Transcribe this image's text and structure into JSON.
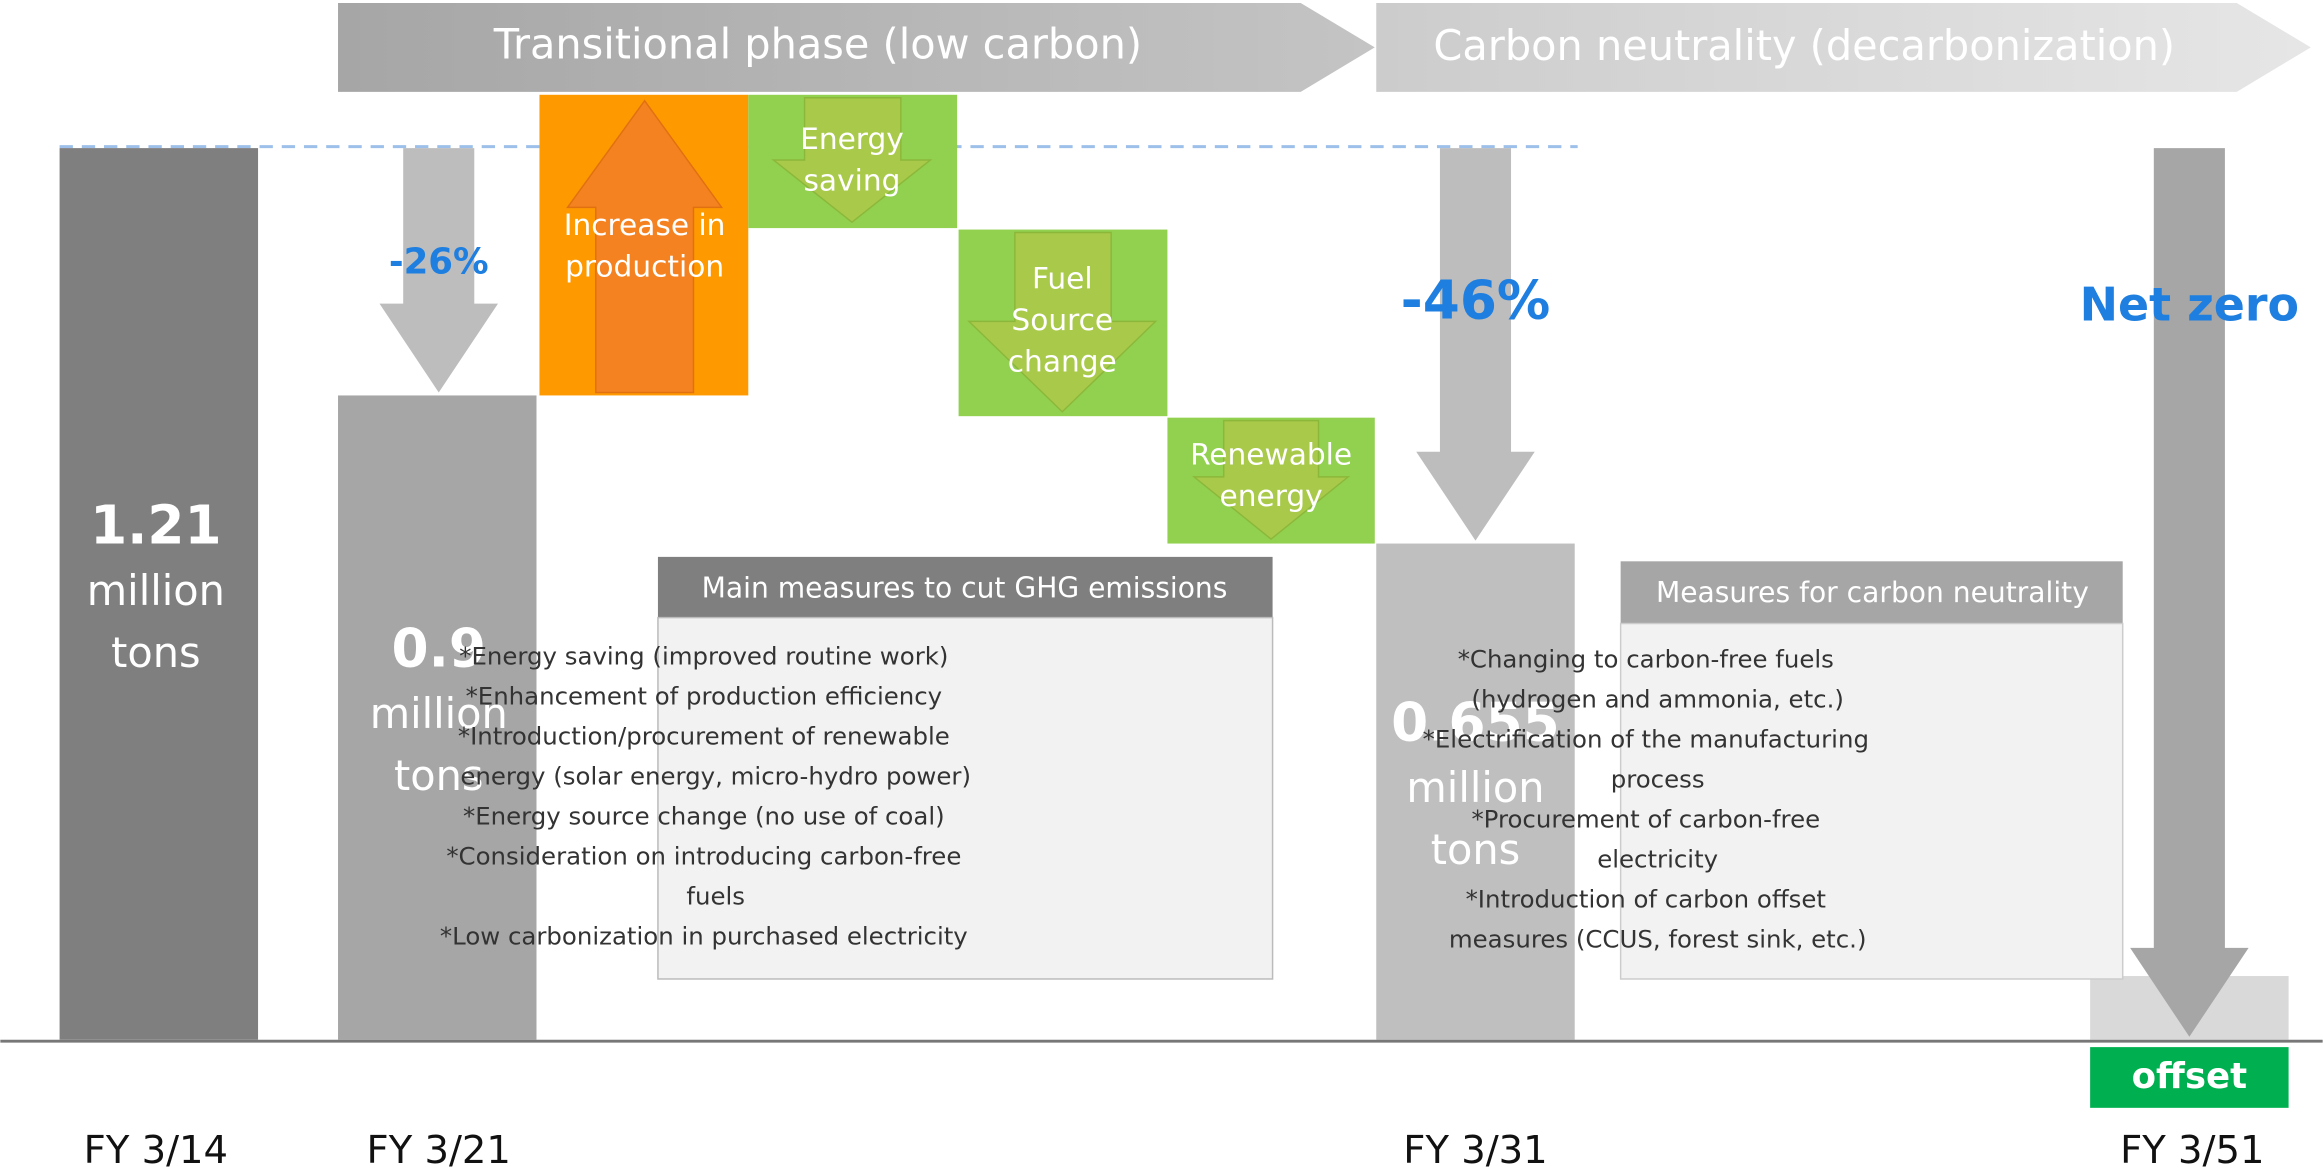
{
  "phases": [
    "Transitional phase (low carbon)",
    "Carbon neutrality (decarbonization)"
  ],
  "bars": [
    {
      "value": "1.21",
      "unit": [
        "million",
        "tons"
      ],
      "year": "FY 3/14"
    },
    {
      "value": "0.9",
      "unit": [
        "million",
        "tons"
      ],
      "year": "FY 3/21"
    },
    {
      "value": "0.655",
      "unit": [
        "million",
        "tons"
      ],
      "year": "FY 3/31"
    }
  ],
  "final_year": "FY 3/51",
  "changes": [
    "-26%",
    "-46%",
    "Net zero"
  ],
  "steps": [
    [
      "Increase in",
      "production"
    ],
    [
      "Energy",
      "saving"
    ],
    [
      "Fuel",
      "Source",
      "change"
    ],
    [
      "Renewable",
      "energy"
    ]
  ],
  "offset": "offset",
  "main_measures": {
    "title": "Main measures to cut GHG emissions",
    "items": [
      [
        "*Energy saving (improved routine work)"
      ],
      [
        "*Enhancement of production efficiency"
      ],
      [
        "*Introduction/procurement of renewable",
        "energy (solar energy, micro-hydro power)"
      ],
      [
        "*Energy source change (no use of coal)"
      ],
      [
        "*Consideration on introducing carbon-free",
        "fuels"
      ],
      [
        "*Low carbonization in purchased electricity"
      ]
    ]
  },
  "neutrality_measures": {
    "title": "Measures for carbon neutrality",
    "items": [
      [
        "*Changing to carbon-free fuels",
        "(hydrogen and ammonia, etc.)"
      ],
      [
        "*Electrification of the manufacturing",
        "process"
      ],
      [
        "*Procurement of carbon-free",
        "electricity"
      ],
      [
        "*Introduction of carbon offset",
        "measures (CCUS, forest sink, etc.)"
      ]
    ]
  }
}
